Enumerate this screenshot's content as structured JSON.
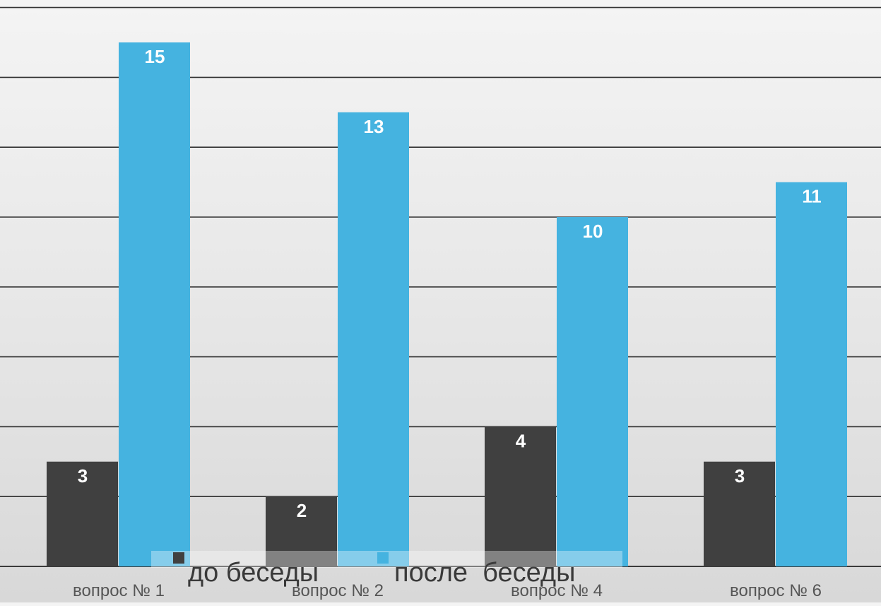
{
  "chart_data": {
    "type": "bar",
    "categories": [
      "вопрос № 1",
      "вопрос № 2",
      "вопрос № 4",
      "вопрос № 6"
    ],
    "series": [
      {
        "name": "до беседы",
        "values": [
          3,
          2,
          4,
          3
        ],
        "color": "#404040"
      },
      {
        "name": "после  беседы",
        "values": [
          15,
          13,
          10,
          11
        ],
        "color": "#45b3e0"
      }
    ],
    "ylim": [
      0,
      16
    ],
    "y_gridline_step": 2,
    "grid": true,
    "legend": "bottom-center",
    "data_labels": true
  }
}
